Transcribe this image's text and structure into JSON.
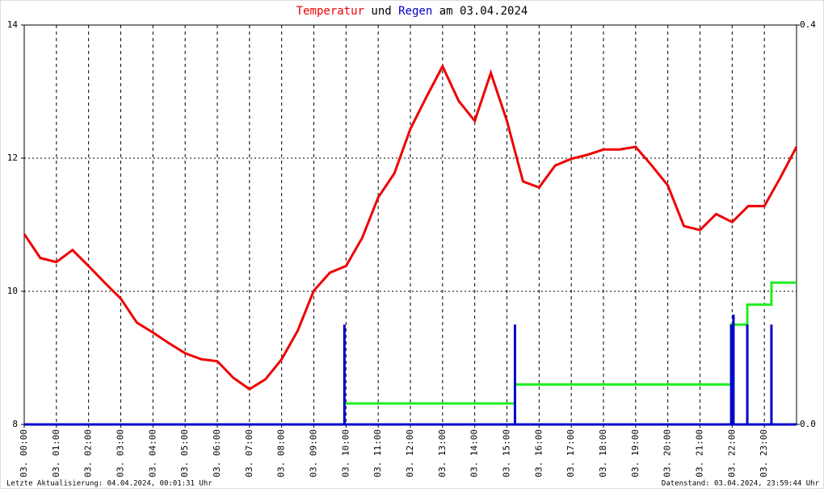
{
  "chart_data": {
    "type": "line",
    "title_parts": [
      "und",
      "am 03.04.2024"
    ],
    "footer_left": "Letzte Aktualisierung: 04.04.2024, 00:01:31 Uhr",
    "footer_right": "Datenstand: 03.04.2024, 23:59:44 Uhr",
    "xlim": [
      0,
      24
    ],
    "xticks": [
      {
        "value": 0,
        "label": "03. 00:00"
      },
      {
        "value": 1,
        "label": "03. 01:00"
      },
      {
        "value": 2,
        "label": "03. 02:00"
      },
      {
        "value": 3,
        "label": "03. 03:00"
      },
      {
        "value": 4,
        "label": "03. 04:00"
      },
      {
        "value": 5,
        "label": "03. 05:00"
      },
      {
        "value": 6,
        "label": "03. 06:00"
      },
      {
        "value": 7,
        "label": "03. 07:00"
      },
      {
        "value": 8,
        "label": "03. 08:00"
      },
      {
        "value": 9,
        "label": "03. 09:00"
      },
      {
        "value": 10,
        "label": "03. 10:00"
      },
      {
        "value": 11,
        "label": "03. 11:00"
      },
      {
        "value": 12,
        "label": "03. 12:00"
      },
      {
        "value": 13,
        "label": "03. 13:00"
      },
      {
        "value": 14,
        "label": "03. 14:00"
      },
      {
        "value": 15,
        "label": "03. 15:00"
      },
      {
        "value": 16,
        "label": "03. 16:00"
      },
      {
        "value": 17,
        "label": "03. 17:00"
      },
      {
        "value": 18,
        "label": "03. 18:00"
      },
      {
        "value": 19,
        "label": "03. 19:00"
      },
      {
        "value": 20,
        "label": "03. 20:00"
      },
      {
        "value": 21,
        "label": "03. 21:00"
      },
      {
        "value": 22,
        "label": "03. 22:00"
      },
      {
        "value": 23,
        "label": "03. 23:00"
      }
    ],
    "ylim": [
      8,
      14
    ],
    "yticks": [
      8,
      10,
      12,
      14
    ],
    "y2lim": [
      0,
      0.4
    ],
    "y2ticks": [
      {
        "value": 0,
        "label": "0.0"
      },
      {
        "value": 0.4,
        "label": "0.4"
      }
    ],
    "grid": true,
    "series": [
      {
        "name": "Temperatur",
        "color": "#ee0000",
        "x": [
          0,
          0.5,
          1,
          1.5,
          2,
          2.5,
          3,
          3.5,
          4,
          4.5,
          5,
          5.5,
          6,
          6.5,
          7,
          7.5,
          8,
          8.5,
          9,
          9.5,
          10,
          10.5,
          11,
          11.5,
          12,
          12.5,
          13,
          13.5,
          14,
          14.5,
          15,
          15.5,
          16,
          16.5,
          17,
          17.5,
          18,
          18.5,
          19,
          19.5,
          20,
          20.5,
          21,
          21.5,
          22,
          22.5,
          23,
          23.5,
          24
        ],
        "values": [
          10.86,
          10.5,
          10.44,
          10.62,
          10.38,
          10.13,
          9.89,
          9.53,
          9.38,
          9.22,
          9.07,
          8.98,
          8.95,
          8.7,
          8.53,
          8.68,
          8.98,
          9.41,
          10.01,
          10.28,
          10.38,
          10.8,
          11.41,
          11.77,
          12.44,
          12.92,
          13.38,
          12.86,
          12.56,
          13.28,
          12.56,
          11.65,
          11.56,
          11.89,
          11.99,
          12.05,
          12.13,
          12.13,
          12.17,
          11.89,
          11.59,
          10.98,
          10.92,
          11.16,
          11.04,
          11.28,
          11.28,
          11.71,
          12.17
        ]
      },
      {
        "name": "Regen",
        "color": "#0000cc",
        "axis": "y2",
        "x": [
          9.95,
          15.25,
          21.97,
          22.04,
          22.47,
          23.22
        ],
        "values": [
          0.1,
          0.1,
          0.1,
          0.11,
          0.1,
          0.1
        ]
      },
      {
        "color": "#22ee22",
        "axis": "y2",
        "x": [
          9.95,
          15.25,
          15.25,
          21.97,
          21.97,
          22.47,
          22.47,
          23.22,
          23.22,
          24
        ],
        "values": [
          0.021,
          0.021,
          0.04,
          0.04,
          0.1,
          0.1,
          0.12,
          0.12,
          0.142,
          0.142
        ]
      }
    ]
  }
}
